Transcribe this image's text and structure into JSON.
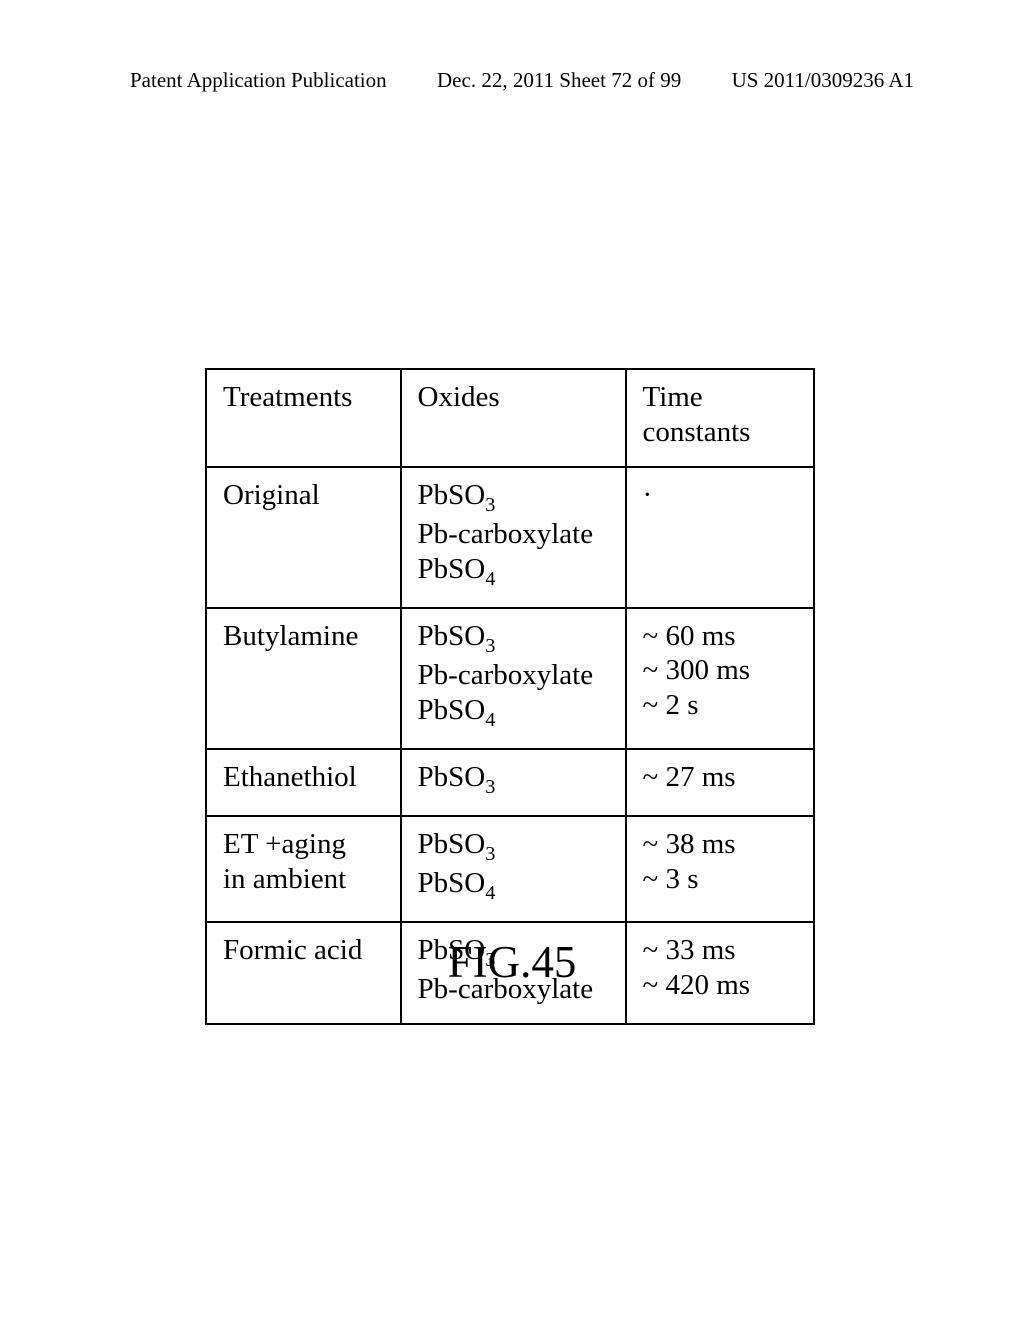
{
  "header": {
    "left": "Patent Application Publication",
    "center": "Dec. 22, 2011  Sheet 72 of 99",
    "right": "US 2011/0309236 A1"
  },
  "table": {
    "columns": [
      "Treatments",
      "Oxides",
      "Time constants"
    ],
    "rows": [
      {
        "treatment": "Original",
        "oxides": [
          "PbSO₃",
          "Pb-carboxylate",
          "PbSO₄"
        ],
        "time": [
          "·"
        ]
      },
      {
        "treatment": "Butylamine",
        "oxides": [
          "PbSO₃",
          "Pb-carboxylate",
          "PbSO₄"
        ],
        "time": [
          "~ 60 ms",
          "~ 300 ms",
          "~ 2 s"
        ]
      },
      {
        "treatment": "Ethanethiol",
        "oxides": [
          "PbSO₃"
        ],
        "time": [
          "~ 27 ms"
        ]
      },
      {
        "treatment": "ET +aging in ambient",
        "oxides": [
          "PbSO₃",
          "PbSO₄"
        ],
        "time": [
          "~ 38 ms",
          "~ 3 s"
        ]
      },
      {
        "treatment": "Formic acid",
        "oxides": [
          "PbSO₃",
          "Pb-carboxylate"
        ],
        "time": [
          "~ 33 ms",
          "~ 420 ms"
        ]
      }
    ]
  },
  "figure_label": "FIG.45"
}
